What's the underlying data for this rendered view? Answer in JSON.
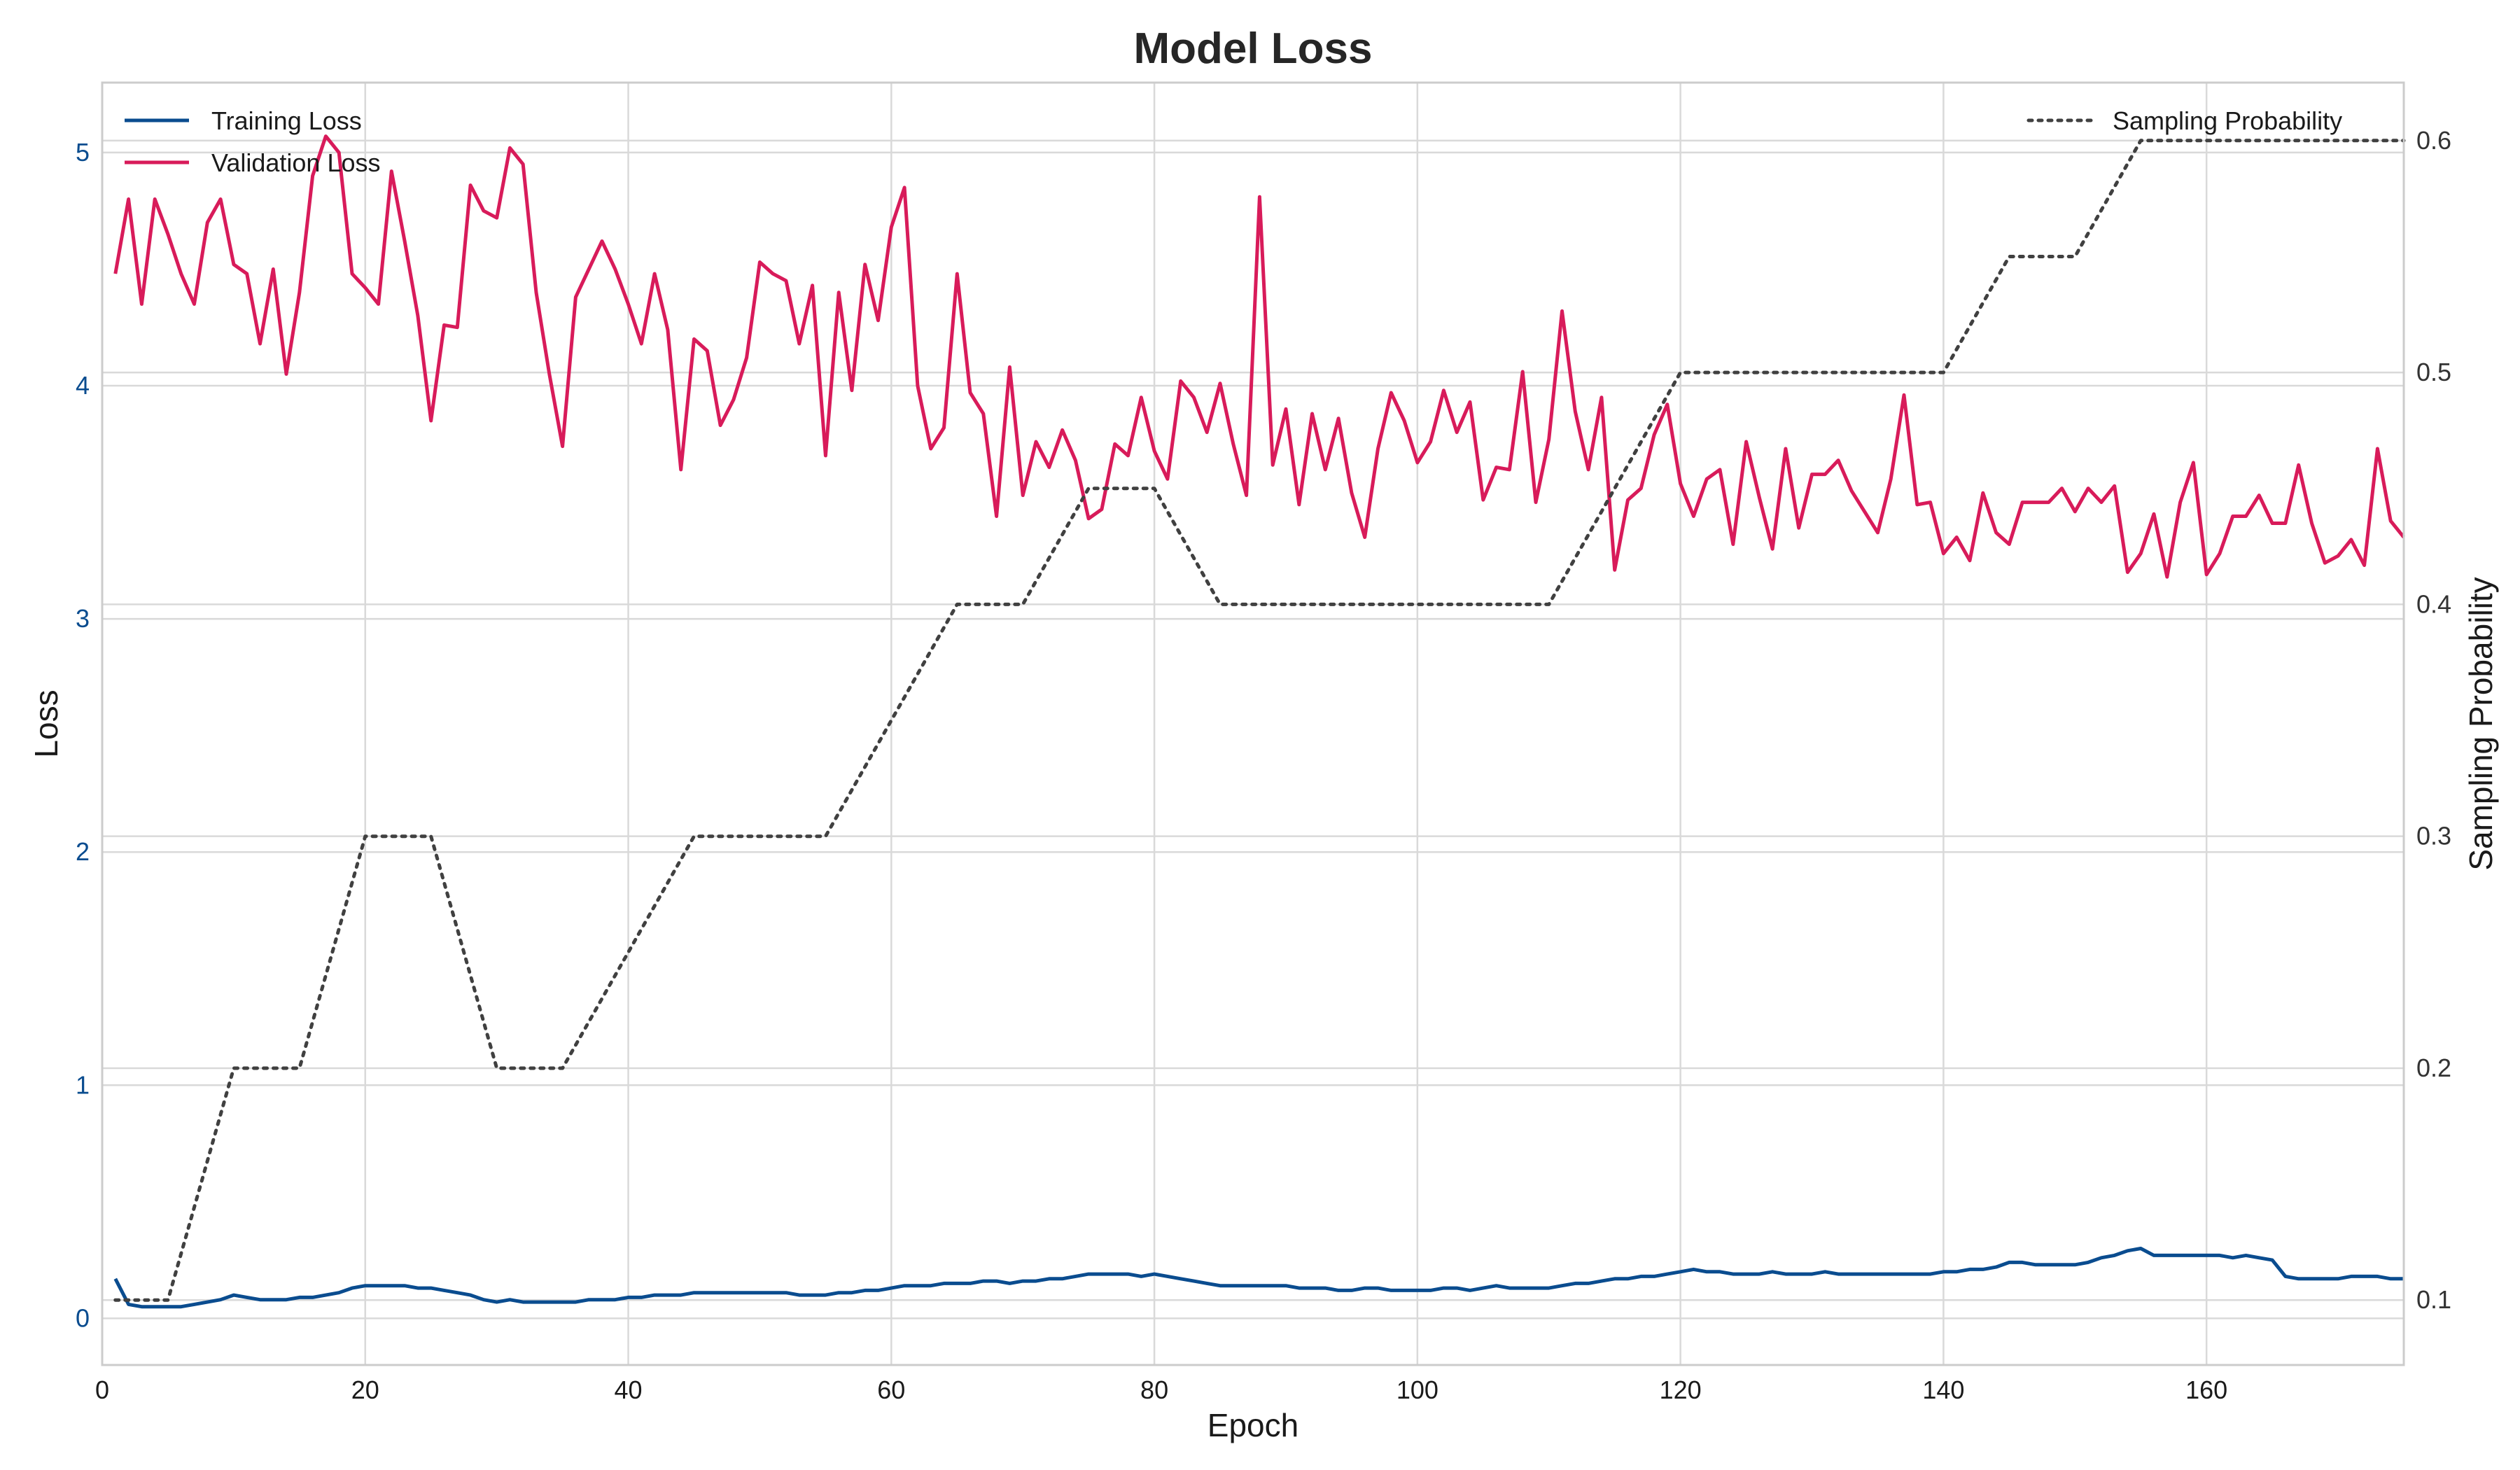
{
  "chart_data": {
    "type": "line",
    "title": "Model Loss",
    "xlabel": "Epoch",
    "ylabel": "Loss",
    "y2label": "Sampling Probability",
    "xlim": [
      0,
      175
    ],
    "ylim": [
      -0.2,
      5.3
    ],
    "y2lim": [
      0.072,
      0.625
    ],
    "xticks": [
      0,
      20,
      40,
      60,
      80,
      100,
      120,
      140,
      160
    ],
    "yticks": [
      0,
      1,
      2,
      3,
      4,
      5
    ],
    "y2ticks": [
      0.1,
      0.2,
      0.3,
      0.4,
      0.5,
      0.6
    ],
    "grid": true,
    "legend_left_placement": "upper-left",
    "legend_right_placement": "upper-right",
    "colors": {
      "training": "#0a4c8f",
      "validation": "#d81b5a",
      "sampling": "#404040",
      "left_tick": "#0a4c8f",
      "right_tick": "#333333"
    },
    "series": [
      {
        "name": "Training Loss",
        "axis": "left",
        "style": "solid",
        "x_start": 1,
        "values": [
          0.17,
          0.06,
          0.05,
          0.05,
          0.05,
          0.05,
          0.06,
          0.07,
          0.08,
          0.1,
          0.09,
          0.08,
          0.08,
          0.08,
          0.09,
          0.09,
          0.1,
          0.11,
          0.13,
          0.14,
          0.14,
          0.14,
          0.14,
          0.13,
          0.13,
          0.12,
          0.11,
          0.1,
          0.08,
          0.07,
          0.08,
          0.07,
          0.07,
          0.07,
          0.07,
          0.07,
          0.08,
          0.08,
          0.08,
          0.09,
          0.09,
          0.1,
          0.1,
          0.1,
          0.11,
          0.11,
          0.11,
          0.11,
          0.11,
          0.11,
          0.11,
          0.11,
          0.1,
          0.1,
          0.1,
          0.11,
          0.11,
          0.12,
          0.12,
          0.13,
          0.14,
          0.14,
          0.14,
          0.15,
          0.15,
          0.15,
          0.16,
          0.16,
          0.15,
          0.16,
          0.16,
          0.17,
          0.17,
          0.18,
          0.19,
          0.19,
          0.19,
          0.19,
          0.18,
          0.19,
          0.18,
          0.17,
          0.16,
          0.15,
          0.14,
          0.14,
          0.14,
          0.14,
          0.14,
          0.14,
          0.13,
          0.13,
          0.13,
          0.12,
          0.12,
          0.13,
          0.13,
          0.12,
          0.12,
          0.12,
          0.12,
          0.13,
          0.13,
          0.12,
          0.13,
          0.14,
          0.13,
          0.13,
          0.13,
          0.13,
          0.14,
          0.15,
          0.15,
          0.16,
          0.17,
          0.17,
          0.18,
          0.18,
          0.19,
          0.2,
          0.21,
          0.2,
          0.2,
          0.19,
          0.19,
          0.19,
          0.2,
          0.19,
          0.19,
          0.19,
          0.2,
          0.19,
          0.19,
          0.19,
          0.19,
          0.19,
          0.19,
          0.19,
          0.19,
          0.2,
          0.2,
          0.21,
          0.21,
          0.22,
          0.24,
          0.24,
          0.23,
          0.23,
          0.23,
          0.23,
          0.24,
          0.26,
          0.27,
          0.29,
          0.3,
          0.27,
          0.27,
          0.27,
          0.27,
          0.27,
          0.27,
          0.26,
          0.27,
          0.26,
          0.25,
          0.18,
          0.17,
          0.17,
          0.17,
          0.17,
          0.18,
          0.18,
          0.18,
          0.17,
          0.17
        ]
      },
      {
        "name": "Validation Loss",
        "axis": "left",
        "style": "solid",
        "x_start": 1,
        "values": [
          4.48,
          4.8,
          4.35,
          4.8,
          4.65,
          4.48,
          4.35,
          4.7,
          4.8,
          4.52,
          4.48,
          4.18,
          4.5,
          4.05,
          4.4,
          4.9,
          5.07,
          5.0,
          4.48,
          4.42,
          4.35,
          4.92,
          4.62,
          4.3,
          3.85,
          4.26,
          4.25,
          4.86,
          4.75,
          4.72,
          5.02,
          4.95,
          4.4,
          4.05,
          3.74,
          4.38,
          4.5,
          4.62,
          4.5,
          4.35,
          4.18,
          4.48,
          4.24,
          3.64,
          4.2,
          4.15,
          3.83,
          3.94,
          4.12,
          4.53,
          4.48,
          4.45,
          4.18,
          4.43,
          3.7,
          4.4,
          3.98,
          4.52,
          4.28,
          4.68,
          4.85,
          4.0,
          3.73,
          3.82,
          4.48,
          3.97,
          3.88,
          3.44,
          4.08,
          3.53,
          3.76,
          3.65,
          3.81,
          3.68,
          3.43,
          3.47,
          3.75,
          3.7,
          3.95,
          3.72,
          3.6,
          4.02,
          3.95,
          3.8,
          4.01,
          3.75,
          3.53,
          4.81,
          3.66,
          3.9,
          3.49,
          3.88,
          3.64,
          3.86,
          3.54,
          3.35,
          3.73,
          3.97,
          3.85,
          3.67,
          3.76,
          3.98,
          3.8,
          3.93,
          3.51,
          3.65,
          3.64,
          4.06,
          3.5,
          3.77,
          4.32,
          3.89,
          3.64,
          3.95,
          3.21,
          3.51,
          3.56,
          3.79,
          3.92,
          3.58,
          3.44,
          3.6,
          3.64,
          3.32,
          3.76,
          3.52,
          3.3,
          3.73,
          3.39,
          3.62,
          3.62,
          3.68,
          3.55,
          3.46,
          3.37,
          3.6,
          3.96,
          3.49,
          3.5,
          3.28,
          3.35,
          3.25,
          3.54,
          3.37,
          3.32,
          3.5,
          3.5,
          3.5,
          3.56,
          3.46,
          3.56,
          3.5,
          3.57,
          3.2,
          3.28,
          3.45,
          3.18,
          3.5,
          3.67,
          3.19,
          3.28,
          3.44,
          3.44,
          3.53,
          3.41,
          3.41,
          3.66,
          3.41,
          3.24,
          3.27,
          3.34,
          3.23,
          3.73,
          3.42,
          3.35
        ]
      },
      {
        "name": "Sampling Probability",
        "axis": "right",
        "style": "dotted",
        "points": [
          [
            1,
            0.1
          ],
          [
            5,
            0.1
          ],
          [
            10,
            0.2
          ],
          [
            15,
            0.2
          ],
          [
            20,
            0.3
          ],
          [
            25,
            0.3
          ],
          [
            30,
            0.2
          ],
          [
            35,
            0.2
          ],
          [
            45,
            0.3
          ],
          [
            55,
            0.3
          ],
          [
            65,
            0.4
          ],
          [
            70,
            0.4
          ],
          [
            75,
            0.45
          ],
          [
            80,
            0.45
          ],
          [
            85,
            0.4
          ],
          [
            110,
            0.4
          ],
          [
            120,
            0.5
          ],
          [
            140,
            0.5
          ],
          [
            145,
            0.55
          ],
          [
            150,
            0.55
          ],
          [
            155,
            0.6
          ],
          [
            175,
            0.6
          ]
        ]
      }
    ]
  }
}
